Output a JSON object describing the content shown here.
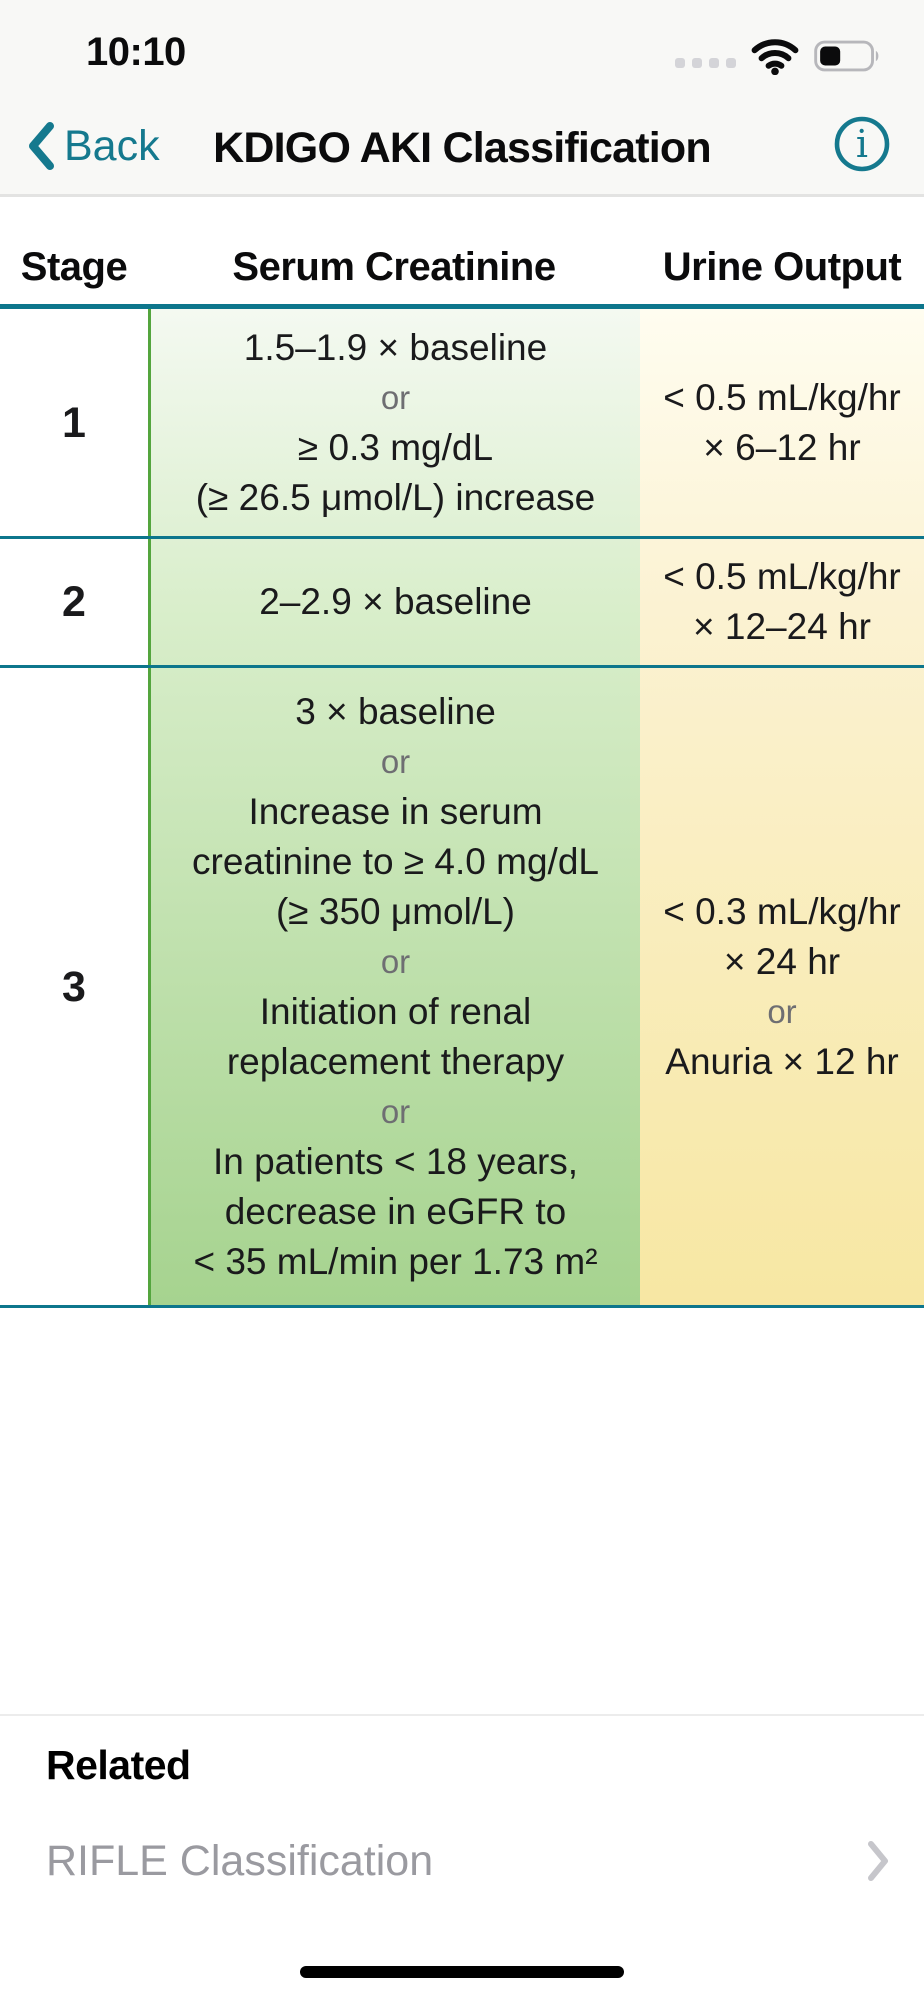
{
  "status_bar": {
    "time": "10:10"
  },
  "nav": {
    "back_label": "Back",
    "title": "KDIGO AKI Classification"
  },
  "table": {
    "headers": [
      "Stage",
      "Serum Creatinine",
      "Urine Output"
    ],
    "rows": [
      {
        "stage": "1",
        "serum_creatinine": [
          "1.5–1.9 × baseline",
          "or",
          "≥ 0.3 mg/dL",
          "(≥ 26.5 μmol/L) increase"
        ],
        "urine_output": [
          "< 0.5 mL/kg/hr",
          "× 6–12 hr"
        ]
      },
      {
        "stage": "2",
        "serum_creatinine": [
          "2–2.9 × baseline"
        ],
        "urine_output": [
          "< 0.5 mL/kg/hr",
          "× 12–24 hr"
        ]
      },
      {
        "stage": "3",
        "serum_creatinine": [
          "3 × baseline",
          "or",
          "Increase in serum",
          "creatinine to ≥ 4.0 mg/dL",
          "(≥ 350 μmol/L)",
          "or",
          "Initiation of renal",
          "replacement therapy",
          "or",
          "In patients < 18 years,",
          "decrease in eGFR to",
          "< 35 mL/min per 1.73 m²"
        ],
        "urine_output": [
          "< 0.3 mL/kg/hr",
          "× 24 hr",
          "or",
          "Anuria × 12 hr"
        ]
      }
    ]
  },
  "related": {
    "title": "Related",
    "items": [
      {
        "label": "RIFLE Classification"
      }
    ]
  },
  "colors": {
    "accent_teal": "#15798e",
    "rule_teal": "#0d768c",
    "rule_green": "#54a53e",
    "green_gradient_top": "#f4f9f1",
    "green_gradient_bottom": "#a6d38f",
    "yellow_gradient_top": "#fffdf0",
    "yellow_gradient_bottom": "#f7e7a3",
    "or_text": "#6e6e72",
    "related_link_gray": "#9a9aa0",
    "chrome_background": "#f8f8f6"
  }
}
